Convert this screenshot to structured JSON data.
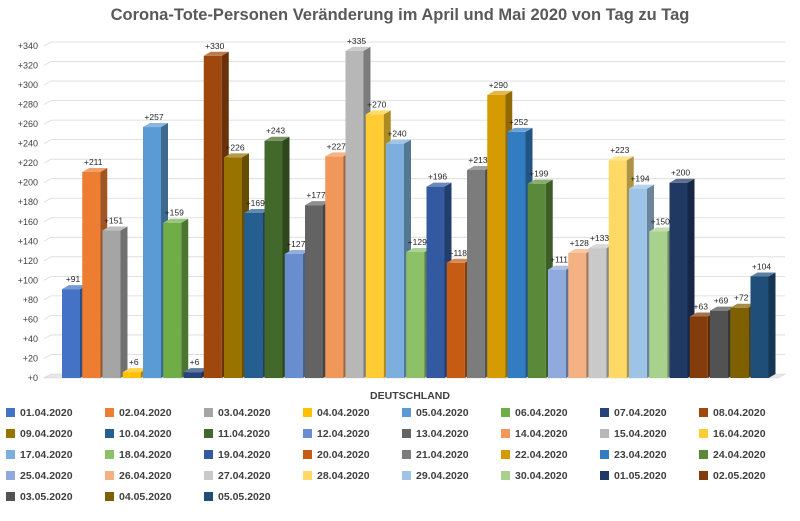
{
  "chart_data": {
    "type": "bar",
    "title": "Corona-Tote-Personen Veränderung im April und Mai 2020 von Tag zu Tag",
    "category": "DEUTSCHLAND",
    "ylim": [
      0,
      340
    ],
    "yticks": [
      "+0",
      "+20",
      "+40",
      "+60",
      "+80",
      "+100",
      "+120",
      "+140",
      "+160",
      "+180",
      "+200",
      "+220",
      "+240",
      "+260",
      "+280",
      "+300",
      "+320",
      "+340"
    ],
    "grid": true,
    "legend_position": "bottom",
    "series": [
      {
        "name": "01.04.2020",
        "value": 91,
        "label": "+91",
        "color": "#4472C4"
      },
      {
        "name": "02.04.2020",
        "value": 211,
        "label": "+211",
        "color": "#ED7D31"
      },
      {
        "name": "03.04.2020",
        "value": 151,
        "label": "+151",
        "color": "#A5A5A5"
      },
      {
        "name": "04.04.2020",
        "value": 6,
        "label": "+6",
        "color": "#FFC000"
      },
      {
        "name": "05.04.2020",
        "value": 257,
        "label": "+257",
        "color": "#5B9BD5"
      },
      {
        "name": "06.04.2020",
        "value": 159,
        "label": "+159",
        "color": "#70AD47"
      },
      {
        "name": "07.04.2020",
        "value": 6,
        "label": "+6",
        "color": "#264478"
      },
      {
        "name": "08.04.2020",
        "value": 330,
        "label": "+330",
        "color": "#9E480E"
      },
      {
        "name": "09.04.2020",
        "value": 226,
        "label": "+226",
        "color": "#997300"
      },
      {
        "name": "10.04.2020",
        "value": 169,
        "label": "+169",
        "color": "#255E91"
      },
      {
        "name": "11.04.2020",
        "value": 243,
        "label": "+243",
        "color": "#43682B"
      },
      {
        "name": "12.04.2020",
        "value": 127,
        "label": "+127",
        "color": "#698ED0"
      },
      {
        "name": "13.04.2020",
        "value": 177,
        "label": "+177",
        "color": "#636363"
      },
      {
        "name": "14.04.2020",
        "value": 227,
        "label": "+227",
        "color": "#F1975A"
      },
      {
        "name": "15.04.2020",
        "value": 335,
        "label": "+335",
        "color": "#B7B7B7"
      },
      {
        "name": "16.04.2020",
        "value": 270,
        "label": "+270",
        "color": "#FFCD33"
      },
      {
        "name": "17.04.2020",
        "value": 240,
        "label": "+240",
        "color": "#7CAFDD"
      },
      {
        "name": "18.04.2020",
        "value": 129,
        "label": "+129",
        "color": "#8CC168"
      },
      {
        "name": "19.04.2020",
        "value": 196,
        "label": "+196",
        "color": "#335AA1"
      },
      {
        "name": "20.04.2020",
        "value": 118,
        "label": "+118",
        "color": "#C65B14"
      },
      {
        "name": "21.04.2020",
        "value": 213,
        "label": "+213",
        "color": "#7C7C7C"
      },
      {
        "name": "22.04.2020",
        "value": 290,
        "label": "+290",
        "color": "#D59B00"
      },
      {
        "name": "23.04.2020",
        "value": 252,
        "label": "+252",
        "color": "#327DC2"
      },
      {
        "name": "24.04.2020",
        "value": 199,
        "label": "+199",
        "color": "#5A8A39"
      },
      {
        "name": "25.04.2020",
        "value": 111,
        "label": "+111",
        "color": "#8FAADC"
      },
      {
        "name": "26.04.2020",
        "value": 128,
        "label": "+128",
        "color": "#F4B183"
      },
      {
        "name": "27.04.2020",
        "value": 133,
        "label": "+133",
        "color": "#C9C9C9"
      },
      {
        "name": "28.04.2020",
        "value": 223,
        "label": "+223",
        "color": "#FFD966"
      },
      {
        "name": "29.04.2020",
        "value": 194,
        "label": "+194",
        "color": "#9DC3E6"
      },
      {
        "name": "30.04.2020",
        "value": 150,
        "label": "+150",
        "color": "#A9D18E"
      },
      {
        "name": "01.05.2020",
        "value": 200,
        "label": "+200",
        "color": "#203864"
      },
      {
        "name": "02.05.2020",
        "value": 63,
        "label": "+63",
        "color": "#843C0C"
      },
      {
        "name": "03.05.2020",
        "value": 69,
        "label": "+69",
        "color": "#525252"
      },
      {
        "name": "04.05.2020",
        "value": 72,
        "label": "+72",
        "color": "#7F6000"
      },
      {
        "name": "05.05.2020",
        "value": 104,
        "label": "+104",
        "color": "#1F4E79"
      }
    ]
  }
}
